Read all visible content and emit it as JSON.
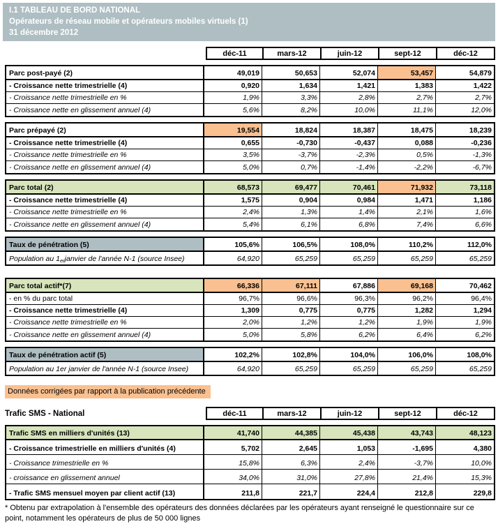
{
  "banner": {
    "line1": "I.1 TABLEAU DE BORD NATIONAL",
    "line2": "Opérateurs de réseau mobile et opérateurs mobiles virtuels (1)",
    "line3": "31 décembre 2012"
  },
  "columns": [
    "déc-11",
    "mars-12",
    "juin-12",
    "sept-12",
    "déc-12"
  ],
  "colors": {
    "banner": "#aebec3",
    "gray": "#aebec3",
    "green": "#d7e4bc",
    "orange": "#fac090"
  },
  "corrections_note": "Données corrigées par rapport à la publication précédente",
  "sms_title": "Trafic SMS - National",
  "footnote": "* Obtenu par extrapolation à l'ensemble des opérateurs des données déclarées par les opérateurs ayant renseigné le questionnaire sur ce point, notamment les opérateurs de plus de 50 000 lignes",
  "tables": [
    {
      "id": "parc-post-paye",
      "rows": [
        {
          "label": "Parc post-payé (2)",
          "style": "header",
          "values": [
            "49,019",
            "50,653",
            "52,074",
            "53,457",
            "54,879"
          ],
          "value_bg": [
            null,
            null,
            null,
            "orange",
            null
          ]
        },
        {
          "label": "- Croissance nette trimestrielle (4)",
          "style": "bold",
          "values": [
            "0,920",
            "1,634",
            "1,421",
            "1,383",
            "1,422"
          ]
        },
        {
          "label": "- Croissance nette trimestrielle en %",
          "style": "italic",
          "values": [
            "1,9%",
            "3,3%",
            "2,8%",
            "2,7%",
            "2,7%"
          ]
        },
        {
          "label": "- Croissance nette en glissement annuel (4)",
          "style": "italic",
          "values": [
            "5,6%",
            "8,2%",
            "10,0%",
            "11,1%",
            "12,0%"
          ]
        }
      ]
    },
    {
      "id": "parc-prepaye",
      "rows": [
        {
          "label": "Parc prépayé (2)",
          "style": "header",
          "values": [
            "19,554",
            "18,824",
            "18,387",
            "18,475",
            "18,239"
          ],
          "value_bg": [
            "orange",
            null,
            null,
            null,
            null
          ]
        },
        {
          "label": "- Croissance nette trimestrielle (4)",
          "style": "bold",
          "values": [
            "0,655",
            "-0,730",
            "-0,437",
            "0,088",
            "-0,236"
          ]
        },
        {
          "label": "- Croissance nette trimestrielle en %",
          "style": "italic",
          "values": [
            "3,5%",
            "-3,7%",
            "-2,3%",
            "0,5%",
            "-1,3%"
          ]
        },
        {
          "label": "- Croissance nette en glissement annuel (4)",
          "style": "italic",
          "values": [
            "5,0%",
            "0,7%",
            "-1,4%",
            "-2,2%",
            "-6,7%"
          ]
        }
      ]
    },
    {
      "id": "parc-total",
      "rows": [
        {
          "label": "Parc total (2)",
          "style": "header",
          "label_bg": "green",
          "values": [
            "68,573",
            "69,477",
            "70,461",
            "71,932",
            "73,118"
          ],
          "value_bg": [
            "green",
            "green",
            "green",
            "orange",
            "green"
          ]
        },
        {
          "label": "- Croissance nette trimestrielle (4)",
          "style": "bold",
          "values": [
            "1,575",
            "0,904",
            "0,984",
            "1,471",
            "1,186"
          ]
        },
        {
          "label": "- Croissance nette trimestrielle en %",
          "style": "italic",
          "values": [
            "2,4%",
            "1,3%",
            "1,4%",
            "2,1%",
            "1,6%"
          ]
        },
        {
          "label": "- Croissance nette en glissement annuel (4)",
          "style": "italic",
          "values": [
            "5,4%",
            "6,1%",
            "6,8%",
            "7,4%",
            "6,6%"
          ]
        }
      ]
    },
    {
      "id": "taux-penetration",
      "rows": [
        {
          "label": "Taux de pénétration (5)",
          "style": "header",
          "label_bg": "gray",
          "values": [
            "105,6%",
            "106,5%",
            "108,0%",
            "110,2%",
            "112,0%"
          ]
        },
        {
          "label_parts": [
            "Population au 1",
            {
              "sup": "er"
            },
            " janvier de l'année N-1 (source Insee)"
          ],
          "label": "Population au 1er janvier de l'année N-1 (source Insee)",
          "style": "italic",
          "values": [
            "64,920",
            "65,259",
            "65,259",
            "65,259",
            "65,259"
          ]
        }
      ]
    },
    {
      "id": "parc-total-actif",
      "rows": [
        {
          "label": "Parc total actif*(7)",
          "style": "header",
          "label_bg": "green",
          "values": [
            "66,336",
            "67,111",
            "67,886",
            "69,168",
            "70,462"
          ],
          "value_bg": [
            "orange",
            "orange",
            null,
            "orange",
            null
          ]
        },
        {
          "label": "- en % du parc total",
          "style": "normal",
          "values": [
            "96,7%",
            "96,6%",
            "96,3%",
            "96,2%",
            "96,4%"
          ]
        },
        {
          "label": "- Croissance nette trimestrielle (4)",
          "style": "bold",
          "values": [
            "1,309",
            "0,775",
            "0,775",
            "1,282",
            "1,294"
          ]
        },
        {
          "label": "- Croissance nette trimestrielle en %",
          "style": "italic",
          "values": [
            "2,0%",
            "1,2%",
            "1,2%",
            "1,9%",
            "1,9%"
          ]
        },
        {
          "label": "- Croissance nette en glissement annuel (4)",
          "style": "italic",
          "values": [
            "5,0%",
            "5,8%",
            "6,2%",
            "6,4%",
            "6,2%"
          ]
        }
      ]
    },
    {
      "id": "taux-penetration-actif",
      "rows": [
        {
          "label": "Taux de pénétration actif (5)",
          "style": "header",
          "label_bg": "gray",
          "values": [
            "102,2%",
            "102,8%",
            "104,0%",
            "106,0%",
            "108,0%"
          ]
        },
        {
          "label": "Population au 1er janvier de l'année N-1 (source Insee)",
          "style": "italic",
          "values": [
            "64,920",
            "65,259",
            "65,259",
            "65,259",
            "65,259"
          ]
        }
      ]
    },
    {
      "id": "trafic-sms",
      "rows": [
        {
          "label": "Trafic SMS en milliers d'unités (13)",
          "style": "header",
          "label_bg": "green",
          "values": [
            "41,740",
            "44,385",
            "45,438",
            "43,743",
            "48,123"
          ],
          "value_bg": [
            "green",
            "green",
            "green",
            "green",
            "green"
          ]
        },
        {
          "label": "- Croissance trimestrielle en milliers d'unités (4)",
          "style": "bold",
          "values": [
            "5,702",
            "2,645",
            "1,053",
            "-1,695",
            "4,380"
          ]
        },
        {
          "label": "- Croissance trimestrielle en %",
          "style": "italic",
          "values": [
            "15,8%",
            "6,3%",
            "2,4%",
            "-3,7%",
            "10,0%"
          ]
        },
        {
          "label": "- croissance en glissement annuel",
          "style": "italic",
          "values": [
            "34,0%",
            "31,0%",
            "27,8%",
            "21,4%",
            "15,3%"
          ]
        },
        {
          "label": "- Trafic SMS mensuel moyen par client actif (13)",
          "style": "bold",
          "values": [
            "211,8",
            "221,7",
            "224,4",
            "212,8",
            "229,8"
          ]
        }
      ]
    }
  ]
}
